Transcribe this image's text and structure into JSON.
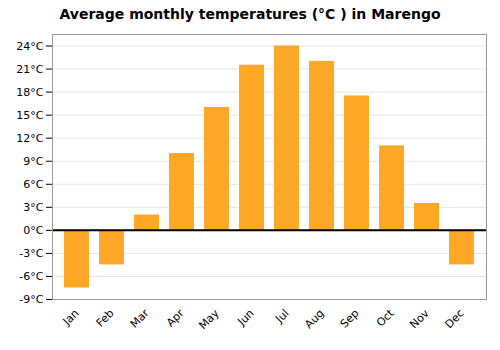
{
  "chart_data": {
    "type": "bar",
    "title": "Average monthly temperatures (°C ) in Marengo",
    "categories": [
      "Jan",
      "Feb",
      "Mar",
      "Apr",
      "May",
      "Jun",
      "Jul",
      "Aug",
      "Sep",
      "Oct",
      "Nov",
      "Dec"
    ],
    "values": [
      -7.5,
      -4.5,
      2.0,
      10.0,
      16.0,
      21.5,
      24.0,
      22.0,
      17.5,
      11.0,
      3.5,
      -4.5
    ],
    "color": "#FFA726",
    "ylim": [
      -9,
      25.5
    ],
    "yticks": [
      {
        "value": -9,
        "label": "-9°C"
      },
      {
        "value": -6,
        "label": "-6°C"
      },
      {
        "value": -3,
        "label": "-3°C"
      },
      {
        "value": 0,
        "label": "0°C"
      },
      {
        "value": 3,
        "label": "3°C"
      },
      {
        "value": 6,
        "label": "6°C"
      },
      {
        "value": 9,
        "label": "9°C"
      },
      {
        "value": 12,
        "label": "12°C"
      },
      {
        "value": 15,
        "label": "15°C"
      },
      {
        "value": 18,
        "label": "18°C"
      },
      {
        "value": 21,
        "label": "21°C"
      },
      {
        "value": 24,
        "label": "24°C"
      }
    ],
    "grid": true
  }
}
